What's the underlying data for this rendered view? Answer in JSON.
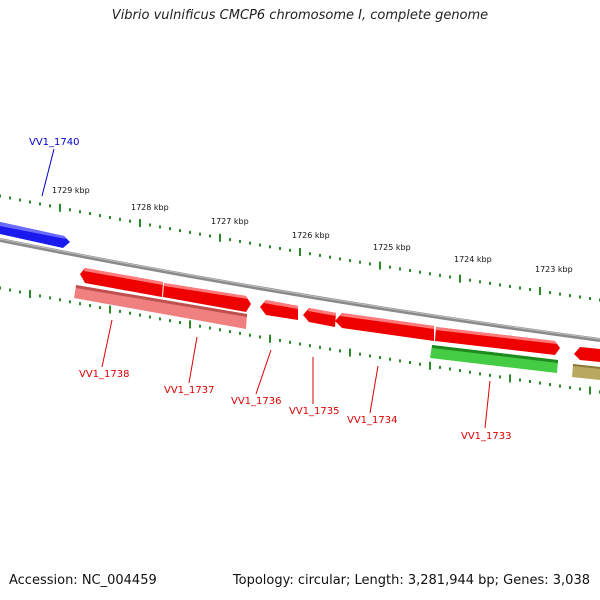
{
  "title": "Vibrio vulnificus CMCP6 chromosome I, complete genome",
  "footer": {
    "accession": "Accession: NC_004459",
    "summary": "Topology: circular; Length: 3,281,944 bp; Genes: 3,038"
  },
  "colors": {
    "backbone": "#8a8a8a",
    "tick": "#2a8a2a",
    "gene_forward_dark": "#ee0000",
    "gene_reverse_light": "#f08080",
    "gene_green": "#44cc44",
    "gene_blue": "#1a1aee",
    "gene_olive": "#b8a860",
    "label_red": "#dd0000",
    "label_blue": "#0000cc"
  },
  "ruler_labels": [
    "1729 kbp",
    "1728 kbp",
    "1727 kbp",
    "1726 kbp",
    "1725 kbp",
    "1724 kbp",
    "1723 kbp"
  ],
  "gene_labels": [
    {
      "text": "VV1_1740",
      "color": "blue"
    },
    {
      "text": "VV1_1738",
      "color": "red"
    },
    {
      "text": "VV1_1737",
      "color": "red"
    },
    {
      "text": "VV1_1736",
      "color": "red"
    },
    {
      "text": "VV1_1735",
      "color": "red"
    },
    {
      "text": "VV1_1734",
      "color": "red"
    },
    {
      "text": "VV1_1733",
      "color": "red"
    }
  ]
}
